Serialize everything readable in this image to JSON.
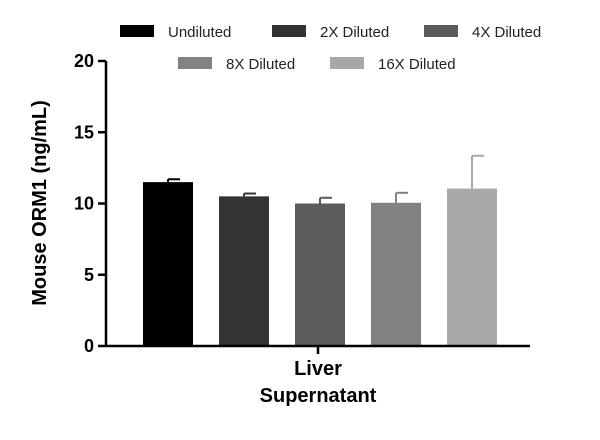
{
  "chart_data": {
    "type": "bar",
    "ylabel": "Mouse ORM1 (ng/mL)",
    "xlabel_lines": [
      "Liver",
      "Supernatant"
    ],
    "ylim": [
      0,
      20
    ],
    "yticks": [
      0,
      5,
      10,
      15,
      20
    ],
    "legend_position": "top",
    "series": [
      {
        "name": "Undiluted",
        "value": 11.5,
        "error": 0.2,
        "color": "#000000"
      },
      {
        "name": "2X Diluted",
        "value": 10.5,
        "error": 0.2,
        "color": "#333333"
      },
      {
        "name": "4X Diluted",
        "value": 10.0,
        "error": 0.4,
        "color": "#5c5c5c"
      },
      {
        "name": "8X Diluted",
        "value": 10.05,
        "error": 0.7,
        "color": "#828282"
      },
      {
        "name": "16X Diluted",
        "value": 11.05,
        "error": 2.3,
        "color": "#a8a8a8"
      }
    ]
  }
}
